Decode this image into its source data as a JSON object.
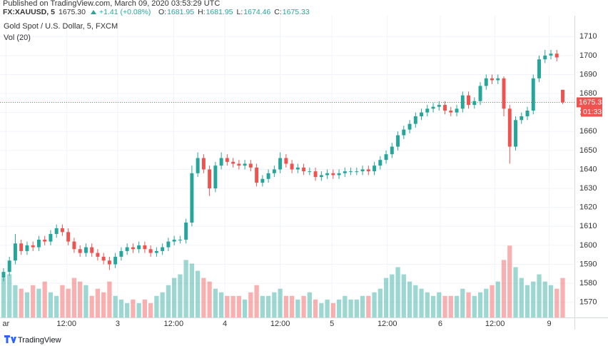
{
  "header": {
    "published": "Published on TradingView.com, March 09, 2020 03:53:29 UTC",
    "symbol": "FX:XAUUSD, 5",
    "price": "1675.30",
    "change": "+1.41 (+0.08%)",
    "ohlc": [
      {
        "label": "O:",
        "value": "1681.95"
      },
      {
        "label": "H:",
        "value": "1681.95"
      },
      {
        "label": "L:",
        "value": "1674.46"
      },
      {
        "label": "C:",
        "value": "1675.33"
      }
    ]
  },
  "footer": {
    "brand": "TradingView"
  },
  "chart_data": {
    "type": "candlestick",
    "title": "Gold Spot / U.S. Dollar, 5, FXCM",
    "indicator": "Vol (20)",
    "up_color": "#26a69a",
    "down_color": "#ef5350",
    "grid": true,
    "countdown": "01:33",
    "open": [
      1583,
      1586,
      1592,
      1601,
      1597,
      1600,
      1599,
      1603,
      1602,
      1606,
      1609,
      1607,
      1602,
      1598,
      1596,
      1599,
      1596,
      1594,
      1592,
      1590,
      1594,
      1597,
      1599,
      1598,
      1600,
      1598,
      1596,
      1597,
      1599,
      1602,
      1603,
      1603,
      1612,
      1638,
      1646,
      1640,
      1630,
      1642,
      1646,
      1644,
      1643,
      1642,
      1643,
      1641,
      1633,
      1635,
      1638,
      1640,
      1646,
      1643,
      1640,
      1641,
      1639,
      1639,
      1636,
      1637,
      1638,
      1637,
      1638,
      1639,
      1639,
      1639,
      1640,
      1639,
      1642,
      1645,
      1648,
      1652,
      1658,
      1661,
      1664,
      1668,
      1670,
      1672,
      1673,
      1674,
      1671,
      1670,
      1672,
      1679,
      1674,
      1676,
      1684,
      1688,
      1687,
      1688,
      1672,
      1652,
      1666,
      1668,
      1671,
      1688,
      1698,
      1700,
      1701,
      1681.95
    ],
    "high": [
      1588,
      1594,
      1606,
      1603,
      1602,
      1602,
      1605,
      1605,
      1608,
      1611,
      1611,
      1609,
      1604,
      1600,
      1601,
      1601,
      1598,
      1596,
      1594,
      1596,
      1599,
      1601,
      1601,
      1602,
      1602,
      1600,
      1599,
      1601,
      1604,
      1605,
      1605,
      1614,
      1642,
      1649,
      1648,
      1642,
      1644,
      1649,
      1648,
      1646,
      1645,
      1645,
      1645,
      1643,
      1637,
      1640,
      1642,
      1649,
      1648,
      1645,
      1643,
      1643,
      1641,
      1641,
      1639,
      1640,
      1640,
      1640,
      1641,
      1641,
      1641,
      1642,
      1642,
      1644,
      1647,
      1650,
      1654,
      1660,
      1663,
      1666,
      1670,
      1672,
      1674,
      1675,
      1676,
      1676,
      1673,
      1674,
      1681,
      1681,
      1678,
      1686,
      1690,
      1690,
      1690,
      1689,
      1674,
      1668,
      1670,
      1673,
      1690,
      1700,
      1703,
      1703,
      1703,
      1681.95
    ],
    "low": [
      1581,
      1584,
      1590,
      1595,
      1595,
      1597,
      1597,
      1600,
      1600,
      1604,
      1605,
      1600,
      1596,
      1594,
      1594,
      1594,
      1592,
      1590,
      1587,
      1588,
      1592,
      1595,
      1596,
      1596,
      1596,
      1594,
      1594,
      1595,
      1597,
      1600,
      1601,
      1601,
      1610,
      1636,
      1638,
      1626,
      1628,
      1640,
      1642,
      1641,
      1640,
      1640,
      1639,
      1631,
      1631,
      1633,
      1636,
      1638,
      1641,
      1638,
      1638,
      1637,
      1637,
      1634,
      1634,
      1635,
      1635,
      1635,
      1636,
      1637,
      1637,
      1637,
      1637,
      1637,
      1640,
      1643,
      1646,
      1650,
      1656,
      1659,
      1662,
      1666,
      1668,
      1670,
      1671,
      1669,
      1668,
      1668,
      1670,
      1672,
      1672,
      1674,
      1682,
      1685,
      1685,
      1668,
      1643,
      1650,
      1664,
      1666,
      1669,
      1686,
      1696,
      1698,
      1697,
      1674.46
    ],
    "close": [
      1586,
      1592,
      1601,
      1597,
      1600,
      1599,
      1603,
      1602,
      1606,
      1609,
      1607,
      1602,
      1598,
      1596,
      1599,
      1596,
      1594,
      1592,
      1590,
      1594,
      1597,
      1599,
      1598,
      1600,
      1598,
      1596,
      1597,
      1599,
      1602,
      1603,
      1603,
      1612,
      1638,
      1646,
      1640,
      1630,
      1642,
      1646,
      1644,
      1643,
      1642,
      1643,
      1641,
      1633,
      1635,
      1638,
      1640,
      1646,
      1643,
      1640,
      1641,
      1639,
      1639,
      1636,
      1637,
      1638,
      1637,
      1638,
      1639,
      1639,
      1639,
      1640,
      1639,
      1642,
      1645,
      1648,
      1652,
      1658,
      1661,
      1664,
      1668,
      1670,
      1672,
      1673,
      1674,
      1671,
      1670,
      1672,
      1679,
      1674,
      1676,
      1684,
      1688,
      1687,
      1688,
      1672,
      1652,
      1666,
      1668,
      1671,
      1688,
      1698,
      1700,
      1701,
      1699,
      1675.33
    ],
    "volume": [
      55,
      60,
      45,
      40,
      35,
      45,
      40,
      50,
      35,
      30,
      45,
      40,
      55,
      50,
      45,
      30,
      40,
      35,
      50,
      30,
      25,
      20,
      25,
      20,
      25,
      20,
      30,
      35,
      45,
      55,
      60,
      80,
      75,
      65,
      55,
      50,
      40,
      35,
      30,
      30,
      30,
      25,
      35,
      45,
      30,
      30,
      35,
      40,
      30,
      30,
      25,
      30,
      35,
      25,
      20,
      25,
      20,
      25,
      30,
      25,
      25,
      30,
      30,
      35,
      40,
      55,
      60,
      70,
      60,
      50,
      45,
      40,
      35,
      30,
      35,
      30,
      30,
      30,
      40,
      35,
      30,
      35,
      40,
      45,
      50,
      80,
      100,
      70,
      55,
      45,
      50,
      60,
      50,
      45,
      40,
      55
    ],
    "vlim": [
      0,
      420
    ],
    "xlim": [
      -0.6,
      97
    ],
    "xticks": [
      {
        "value": 0.4,
        "label": "ar"
      },
      {
        "value": 10.7,
        "label": "12:00"
      },
      {
        "value": 19.4,
        "label": "3"
      },
      {
        "value": 28.9,
        "label": "12:00"
      },
      {
        "value": 37.6,
        "label": "4"
      },
      {
        "value": 47.0,
        "label": "12:00"
      },
      {
        "value": 55.8,
        "label": "5"
      },
      {
        "value": 65.2,
        "label": "12:00"
      },
      {
        "value": 74.2,
        "label": "6"
      },
      {
        "value": 83.5,
        "label": "12:00"
      },
      {
        "value": 92.7,
        "label": "9"
      }
    ],
    "ylim": [
      1562,
      1721
    ],
    "yticks": [
      1570,
      1580,
      1590,
      1600,
      1610,
      1620,
      1630,
      1640,
      1650,
      1660,
      1670,
      1680,
      1690,
      1700,
      1710
    ]
  }
}
